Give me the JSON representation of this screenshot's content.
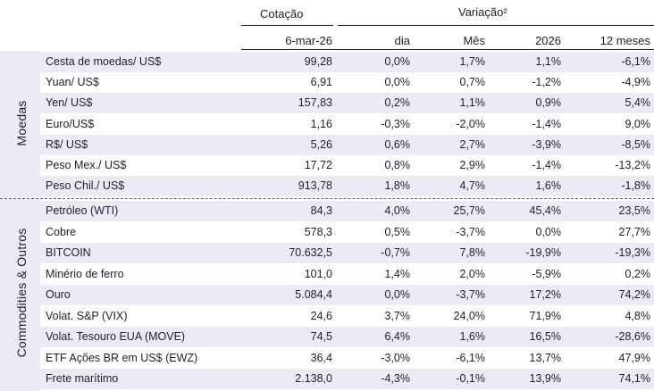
{
  "header": {
    "cotacao": "Cotação",
    "variacao": "Variação²",
    "date_col": "6-mar-26",
    "dia": "dia",
    "mes": "Mês",
    "year": "2026",
    "meses12": "12 meses"
  },
  "groups": {
    "moedas": "Moedas",
    "commodities": "Commodities & Outros"
  },
  "rows": [
    {
      "name": "Cesta de moedas/ US$",
      "cotacao": "99,28",
      "dia": "0,0%",
      "mes": "1,7%",
      "ytd": "1,1%",
      "m12": "-6,1%"
    },
    {
      "name": "Yuan/ US$",
      "cotacao": "6,91",
      "dia": "0,0%",
      "mes": "0,7%",
      "ytd": "-1,2%",
      "m12": "-4,9%"
    },
    {
      "name": "Yen/ US$",
      "cotacao": "157,83",
      "dia": "0,2%",
      "mes": "1,1%",
      "ytd": "0,9%",
      "m12": "5,4%"
    },
    {
      "name": "Euro/US$",
      "cotacao": "1,16",
      "dia": "-0,3%",
      "mes": "-2,0%",
      "ytd": "-1,4%",
      "m12": "9,0%"
    },
    {
      "name": "R$/ US$",
      "cotacao": "5,26",
      "dia": "0,6%",
      "mes": "2,7%",
      "ytd": "-3,9%",
      "m12": "-8,5%"
    },
    {
      "name": "Peso Mex./ US$",
      "cotacao": "17,72",
      "dia": "0,8%",
      "mes": "2,9%",
      "ytd": "-1,4%",
      "m12": "-13,2%"
    },
    {
      "name": "Peso Chil./ US$",
      "cotacao": "913,78",
      "dia": "1,8%",
      "mes": "4,7%",
      "ytd": "1,6%",
      "m12": "-1,8%"
    },
    {
      "name": "Petróleo (WTI)",
      "cotacao": "84,3",
      "dia": "4,0%",
      "mes": "25,7%",
      "ytd": "45,4%",
      "m12": "23,5%"
    },
    {
      "name": "Cobre",
      "cotacao": "578,3",
      "dia": "0,5%",
      "mes": "-3,7%",
      "ytd": "0,0%",
      "m12": "27,7%"
    },
    {
      "name": "BITCOIN",
      "cotacao": "70.632,5",
      "dia": "-0,7%",
      "mes": "7,8%",
      "ytd": "-19,9%",
      "m12": "-19,3%"
    },
    {
      "name": "Minério de ferro",
      "cotacao": "101,0",
      "dia": "1,4%",
      "mes": "2,0%",
      "ytd": "-5,9%",
      "m12": "0,2%"
    },
    {
      "name": "Ouro",
      "cotacao": "5.084,4",
      "dia": "0,0%",
      "mes": "-3,7%",
      "ytd": "17,2%",
      "m12": "74,2%"
    },
    {
      "name": "Volat. S&P (VIX)",
      "cotacao": "24,6",
      "dia": "3,7%",
      "mes": "24,0%",
      "ytd": "71,9%",
      "m12": "4,8%"
    },
    {
      "name": "Volat. Tesouro EUA (MOVE)",
      "cotacao": "74,5",
      "dia": "6,4%",
      "mes": "1,6%",
      "ytd": "16,5%",
      "m12": "-28,6%"
    },
    {
      "name": "ETF Ações BR em US$ (EWZ)",
      "cotacao": "36,4",
      "dia": "-3,0%",
      "mes": "-6,1%",
      "ytd": "13,7%",
      "m12": "47,9%"
    },
    {
      "name": "Frete marítimo",
      "cotacao": "2.138,0",
      "dia": "-4,3%",
      "mes": "-0,1%",
      "ytd": "13,9%",
      "m12": "74,1%"
    }
  ]
}
